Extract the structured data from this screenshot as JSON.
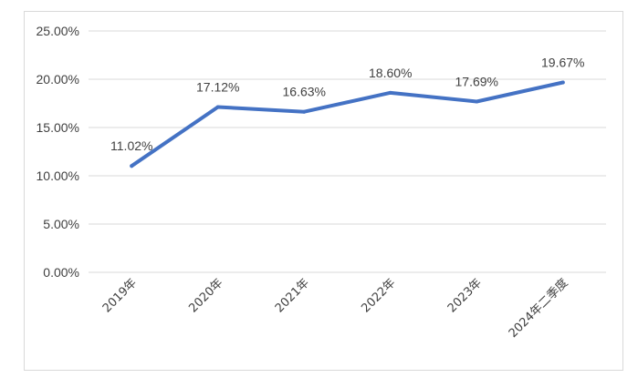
{
  "chart_data": {
    "type": "line",
    "title": "",
    "xlabel": "",
    "ylabel": "",
    "categories": [
      "2019年",
      "2020年",
      "2021年",
      "2022年",
      "2023年",
      "2024年二季度"
    ],
    "series": [
      {
        "values": [
          11.02,
          17.12,
          16.63,
          18.6,
          17.69,
          19.67
        ]
      }
    ],
    "data_labels": [
      "11.02%",
      "17.12%",
      "16.63%",
      "18.60%",
      "17.69%",
      "19.67%"
    ],
    "y_ticks": [
      "0.00%",
      "5.00%",
      "10.00%",
      "15.00%",
      "20.00%",
      "25.00%"
    ],
    "ylim": [
      0,
      25
    ],
    "y_tick_step": 5,
    "grid": true,
    "legend": "none",
    "colors": {
      "line": "#4472c4",
      "grid": "#d9d9d9",
      "text": "#404040"
    }
  }
}
